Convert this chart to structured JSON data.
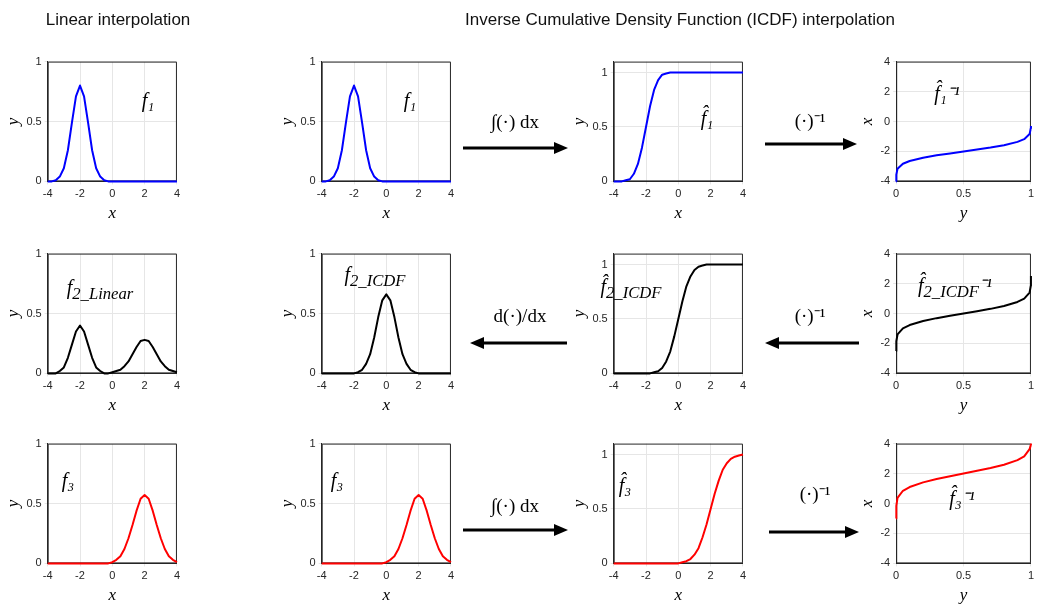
{
  "chart_data": [
    {
      "type": "line",
      "title": "Linear interpolation",
      "xlabel": "x",
      "ylabel": "y",
      "xlim": [
        -4,
        4
      ],
      "xticks": [
        -4,
        -2,
        0,
        2,
        4
      ],
      "ylim": [
        0,
        1
      ],
      "yticks": [
        0,
        0.5,
        1
      ],
      "grid": true,
      "marker": "none",
      "annotations": [
        "f₁"
      ],
      "x": [
        -4,
        -3.75,
        -3.5,
        -3.25,
        -3,
        -2.75,
        -2.5,
        -2.25,
        -2,
        -1.75,
        -1.5,
        -1.25,
        -1,
        -0.75,
        -0.5,
        -0.25,
        0,
        0.25,
        0.5,
        0.75,
        1,
        1.25,
        1.5,
        1.75,
        2,
        2.25,
        2.5,
        2.75,
        3,
        3.25,
        3.5,
        3.75,
        4
      ],
      "series": [
        {
          "color": "#0000ff",
          "values": [
            0,
            0,
            0.01,
            0.04,
            0.11,
            0.26,
            0.49,
            0.71,
            0.8,
            0.71,
            0.49,
            0.26,
            0.11,
            0.04,
            0.01,
            0,
            0,
            0,
            0,
            0,
            0,
            0,
            0,
            0,
            0,
            0,
            0,
            0,
            0,
            0,
            0,
            0,
            0
          ]
        }
      ]
    },
    {
      "type": "line",
      "xlabel": "x",
      "ylabel": "y",
      "xlim": [
        -4,
        4
      ],
      "xticks": [
        -4,
        -2,
        0,
        2,
        4
      ],
      "ylim": [
        0,
        1
      ],
      "yticks": [
        0,
        0.5,
        1
      ],
      "grid": true,
      "marker": "none",
      "annotations": [
        "f₁",
        "∫(·) dx"
      ],
      "x": [
        -4,
        -3.75,
        -3.5,
        -3.25,
        -3,
        -2.75,
        -2.5,
        -2.25,
        -2,
        -1.75,
        -1.5,
        -1.25,
        -1,
        -0.75,
        -0.5,
        -0.25,
        0,
        0.25,
        0.5,
        0.75,
        1,
        1.25,
        1.5,
        1.75,
        2,
        2.25,
        2.5,
        2.75,
        3,
        3.25,
        3.5,
        3.75,
        4
      ],
      "series": [
        {
          "color": "#0000ff",
          "values": [
            0,
            0,
            0.01,
            0.04,
            0.11,
            0.26,
            0.49,
            0.71,
            0.8,
            0.71,
            0.49,
            0.26,
            0.11,
            0.04,
            0.01,
            0,
            0,
            0,
            0,
            0,
            0,
            0,
            0,
            0,
            0,
            0,
            0,
            0,
            0,
            0,
            0,
            0,
            0
          ]
        }
      ]
    },
    {
      "type": "line",
      "title": "Inverse Cumulative Density Function (ICDF) interpolation",
      "xlabel": "x",
      "ylabel": "y",
      "xlim": [
        -4,
        4
      ],
      "xticks": [
        -4,
        -2,
        0,
        2,
        4
      ],
      "ylim": [
        0,
        1.1
      ],
      "yticks": [
        0,
        0.5,
        1
      ],
      "grid": true,
      "marker": "none",
      "annotations": [
        "f̂₁",
        "(·)⁻¹"
      ],
      "x": [
        -4,
        -3.75,
        -3.5,
        -3.25,
        -3,
        -2.75,
        -2.5,
        -2.25,
        -2,
        -1.75,
        -1.5,
        -1.25,
        -1,
        -0.75,
        -0.5,
        -0.25,
        0,
        0.25,
        0.5,
        0.75,
        1,
        1.25,
        1.5,
        1.75,
        2,
        2.25,
        2.5,
        2.75,
        3,
        3.25,
        3.5,
        3.75,
        4
      ],
      "series": [
        {
          "color": "#0000ff",
          "values": [
            0,
            0,
            0,
            0.01,
            0.02,
            0.07,
            0.16,
            0.31,
            0.5,
            0.69,
            0.84,
            0.93,
            0.98,
            0.99,
            1,
            1,
            1,
            1,
            1,
            1,
            1,
            1,
            1,
            1,
            1,
            1,
            1,
            1,
            1,
            1,
            1,
            1,
            1
          ]
        }
      ]
    },
    {
      "type": "line",
      "xlabel": "y",
      "ylabel": "x",
      "xlim": [
        0,
        1
      ],
      "xticks": [
        0,
        0.5,
        1
      ],
      "ylim": [
        -4,
        4
      ],
      "yticks": [
        -4,
        -2,
        0,
        2,
        4
      ],
      "grid": true,
      "marker": "none",
      "annotations": [
        "f̂₁⁻¹"
      ],
      "x": [
        0,
        0.001,
        0.01,
        0.05,
        0.1,
        0.2,
        0.3,
        0.4,
        0.5,
        0.6,
        0.7,
        0.8,
        0.9,
        0.95,
        0.99,
        0.999,
        1
      ],
      "series": [
        {
          "color": "#0000ff",
          "values": [
            -4,
            -3.55,
            -3.16,
            -2.82,
            -2.64,
            -2.42,
            -2.26,
            -2.13,
            -2,
            -1.87,
            -1.74,
            -1.58,
            -1.36,
            -1.18,
            -0.84,
            -0.45,
            -0.3
          ]
        }
      ]
    },
    {
      "type": "line",
      "xlabel": "x",
      "ylabel": "y",
      "xlim": [
        -4,
        4
      ],
      "xticks": [
        -4,
        -2,
        0,
        2,
        4
      ],
      "ylim": [
        0,
        1
      ],
      "yticks": [
        0,
        0.5,
        1
      ],
      "grid": true,
      "marker": "none",
      "annotations": [
        "f$_{2_Linear}$"
      ],
      "x": [
        -4,
        -3.75,
        -3.5,
        -3.25,
        -3,
        -2.75,
        -2.5,
        -2.25,
        -2,
        -1.75,
        -1.5,
        -1.25,
        -1,
        -0.75,
        -0.5,
        -0.25,
        0,
        0.25,
        0.5,
        0.75,
        1,
        1.25,
        1.5,
        1.75,
        2,
        2.25,
        2.5,
        2.75,
        3,
        3.25,
        3.5,
        3.75,
        4
      ],
      "series": [
        {
          "color": "#000000",
          "values": [
            0,
            0,
            0,
            0.02,
            0.05,
            0.13,
            0.24,
            0.35,
            0.4,
            0.35,
            0.24,
            0.13,
            0.05,
            0.02,
            0,
            0,
            0.01,
            0.02,
            0.03,
            0.06,
            0.1,
            0.16,
            0.22,
            0.27,
            0.28,
            0.27,
            0.22,
            0.16,
            0.1,
            0.06,
            0.03,
            0.02,
            0.01
          ]
        }
      ]
    },
    {
      "type": "line",
      "xlabel": "x",
      "ylabel": "y",
      "xlim": [
        -4,
        4
      ],
      "xticks": [
        -4,
        -2,
        0,
        2,
        4
      ],
      "ylim": [
        0,
        1
      ],
      "yticks": [
        0,
        0.5,
        1
      ],
      "grid": true,
      "marker": "none",
      "annotations": [
        "f$_{2_ICDF}$",
        "d(·)/dx"
      ],
      "x": [
        -4,
        -3.75,
        -3.5,
        -3.25,
        -3,
        -2.75,
        -2.5,
        -2.25,
        -2,
        -1.75,
        -1.5,
        -1.25,
        -1,
        -0.75,
        -0.5,
        -0.25,
        0,
        0.25,
        0.5,
        0.75,
        1,
        1.25,
        1.5,
        1.75,
        2,
        2.25,
        2.5,
        2.75,
        3,
        3.25,
        3.5,
        3.75,
        4
      ],
      "series": [
        {
          "color": "#000000",
          "values": [
            0,
            0,
            0,
            0,
            0,
            0,
            0,
            0,
            0,
            0.01,
            0.03,
            0.08,
            0.16,
            0.3,
            0.47,
            0.61,
            0.66,
            0.61,
            0.47,
            0.3,
            0.16,
            0.08,
            0.03,
            0.01,
            0,
            0,
            0,
            0,
            0,
            0,
            0,
            0,
            0
          ]
        }
      ]
    },
    {
      "type": "line",
      "xlabel": "x",
      "ylabel": "y",
      "xlim": [
        -4,
        4
      ],
      "xticks": [
        -4,
        -2,
        0,
        2,
        4
      ],
      "ylim": [
        0,
        1.1
      ],
      "yticks": [
        0,
        0.5,
        1
      ],
      "grid": true,
      "marker": "none",
      "annotations": [
        "f̂$_{2_ICDF}$",
        "(·)⁻¹"
      ],
      "x": [
        -4,
        -3.75,
        -3.5,
        -3.25,
        -3,
        -2.75,
        -2.5,
        -2.25,
        -2,
        -1.75,
        -1.5,
        -1.25,
        -1,
        -0.75,
        -0.5,
        -0.25,
        0,
        0.25,
        0.5,
        0.75,
        1,
        1.25,
        1.5,
        1.75,
        2,
        2.25,
        2.5,
        2.75,
        3,
        3.25,
        3.5,
        3.75,
        4
      ],
      "series": [
        {
          "color": "#000000",
          "values": [
            0,
            0,
            0,
            0,
            0,
            0,
            0,
            0,
            0,
            0,
            0.01,
            0.02,
            0.05,
            0.11,
            0.2,
            0.34,
            0.5,
            0.66,
            0.8,
            0.89,
            0.95,
            0.98,
            0.99,
            1,
            1,
            1,
            1,
            1,
            1,
            1,
            1,
            1,
            1
          ]
        }
      ]
    },
    {
      "type": "line",
      "xlabel": "y",
      "ylabel": "x",
      "xlim": [
        0,
        1
      ],
      "xticks": [
        0,
        0.5,
        1
      ],
      "ylim": [
        -4,
        4
      ],
      "yticks": [
        -4,
        -2,
        0,
        2,
        4
      ],
      "grid": true,
      "marker": "none",
      "annotations": [
        "f̂$_{2_ICDF}$⁻¹"
      ],
      "x": [
        0,
        0.001,
        0.01,
        0.05,
        0.1,
        0.2,
        0.3,
        0.4,
        0.5,
        0.6,
        0.7,
        0.8,
        0.9,
        0.95,
        0.99,
        0.999,
        1
      ],
      "series": [
        {
          "color": "#000000",
          "values": [
            -2.5,
            -1.85,
            -1.4,
            -0.99,
            -0.77,
            -0.5,
            -0.31,
            -0.15,
            0,
            0.15,
            0.31,
            0.5,
            0.77,
            0.99,
            1.4,
            1.85,
            2.5
          ]
        }
      ]
    },
    {
      "type": "line",
      "xlabel": "x",
      "ylabel": "y",
      "xlim": [
        -4,
        4
      ],
      "xticks": [
        -4,
        -2,
        0,
        2,
        4
      ],
      "ylim": [
        0,
        1
      ],
      "yticks": [
        0,
        0.5,
        1
      ],
      "grid": true,
      "marker": "none",
      "annotations": [
        "f₃"
      ],
      "x": [
        -4,
        -3.75,
        -3.5,
        -3.25,
        -3,
        -2.75,
        -2.5,
        -2.25,
        -2,
        -1.75,
        -1.5,
        -1.25,
        -1,
        -0.75,
        -0.5,
        -0.25,
        0,
        0.25,
        0.5,
        0.75,
        1,
        1.25,
        1.5,
        1.75,
        2,
        2.25,
        2.5,
        2.75,
        3,
        3.25,
        3.5,
        3.75,
        4
      ],
      "series": [
        {
          "color": "#ff0000",
          "values": [
            0,
            0,
            0,
            0,
            0,
            0,
            0,
            0,
            0,
            0,
            0,
            0,
            0,
            0,
            0,
            0,
            0.01,
            0.03,
            0.06,
            0.12,
            0.21,
            0.32,
            0.44,
            0.54,
            0.57,
            0.54,
            0.44,
            0.32,
            0.21,
            0.12,
            0.06,
            0.03,
            0.01
          ]
        }
      ]
    },
    {
      "type": "line",
      "xlabel": "x",
      "ylabel": "y",
      "xlim": [
        -4,
        4
      ],
      "xticks": [
        -4,
        -2,
        0,
        2,
        4
      ],
      "ylim": [
        0,
        1
      ],
      "yticks": [
        0,
        0.5,
        1
      ],
      "grid": true,
      "marker": "none",
      "annotations": [
        "f₃",
        "∫(·) dx"
      ],
      "x": [
        -4,
        -3.75,
        -3.5,
        -3.25,
        -3,
        -2.75,
        -2.5,
        -2.25,
        -2,
        -1.75,
        -1.5,
        -1.25,
        -1,
        -0.75,
        -0.5,
        -0.25,
        0,
        0.25,
        0.5,
        0.75,
        1,
        1.25,
        1.5,
        1.75,
        2,
        2.25,
        2.5,
        2.75,
        3,
        3.25,
        3.5,
        3.75,
        4
      ],
      "series": [
        {
          "color": "#ff0000",
          "values": [
            0,
            0,
            0,
            0,
            0,
            0,
            0,
            0,
            0,
            0,
            0,
            0,
            0,
            0,
            0,
            0,
            0.01,
            0.03,
            0.06,
            0.12,
            0.21,
            0.32,
            0.44,
            0.54,
            0.57,
            0.54,
            0.44,
            0.32,
            0.21,
            0.12,
            0.06,
            0.03,
            0.01
          ]
        }
      ]
    },
    {
      "type": "line",
      "xlabel": "x",
      "ylabel": "y",
      "xlim": [
        -4,
        4
      ],
      "xticks": [
        -4,
        -2,
        0,
        2,
        4
      ],
      "ylim": [
        0,
        1.1
      ],
      "yticks": [
        0,
        0.5,
        1
      ],
      "grid": true,
      "marker": "none",
      "annotations": [
        "f̂₃",
        "(·)⁻¹"
      ],
      "x": [
        -4,
        -3.75,
        -3.5,
        -3.25,
        -3,
        -2.75,
        -2.5,
        -2.25,
        -2,
        -1.75,
        -1.5,
        -1.25,
        -1,
        -0.75,
        -0.5,
        -0.25,
        0,
        0.25,
        0.5,
        0.75,
        1,
        1.25,
        1.5,
        1.75,
        2,
        2.25,
        2.5,
        2.75,
        3,
        3.25,
        3.5,
        3.75,
        4
      ],
      "series": [
        {
          "color": "#ff0000",
          "values": [
            0,
            0,
            0,
            0,
            0,
            0,
            0,
            0,
            0,
            0,
            0,
            0,
            0,
            0,
            0,
            0,
            0,
            0.01,
            0.02,
            0.04,
            0.08,
            0.14,
            0.24,
            0.36,
            0.5,
            0.64,
            0.76,
            0.86,
            0.92,
            0.96,
            0.98,
            0.99,
            1
          ]
        }
      ]
    },
    {
      "type": "line",
      "xlabel": "y",
      "ylabel": "x",
      "xlim": [
        0,
        1
      ],
      "xticks": [
        0,
        0.5,
        1
      ],
      "ylim": [
        -4,
        4
      ],
      "yticks": [
        -4,
        -2,
        0,
        2,
        4
      ],
      "grid": true,
      "marker": "none",
      "annotations": [
        "f̂₃⁻¹"
      ],
      "x": [
        0,
        0.001,
        0.01,
        0.05,
        0.1,
        0.2,
        0.3,
        0.4,
        0.5,
        0.6,
        0.7,
        0.8,
        0.9,
        0.95,
        0.99,
        0.999,
        1
      ],
      "series": [
        {
          "color": "#ff0000",
          "values": [
            -1,
            -0.16,
            0.37,
            0.85,
            1.1,
            1.41,
            1.63,
            1.82,
            2,
            2.18,
            2.37,
            2.59,
            2.9,
            3.15,
            3.63,
            3.9,
            4
          ]
        }
      ]
    }
  ]
}
